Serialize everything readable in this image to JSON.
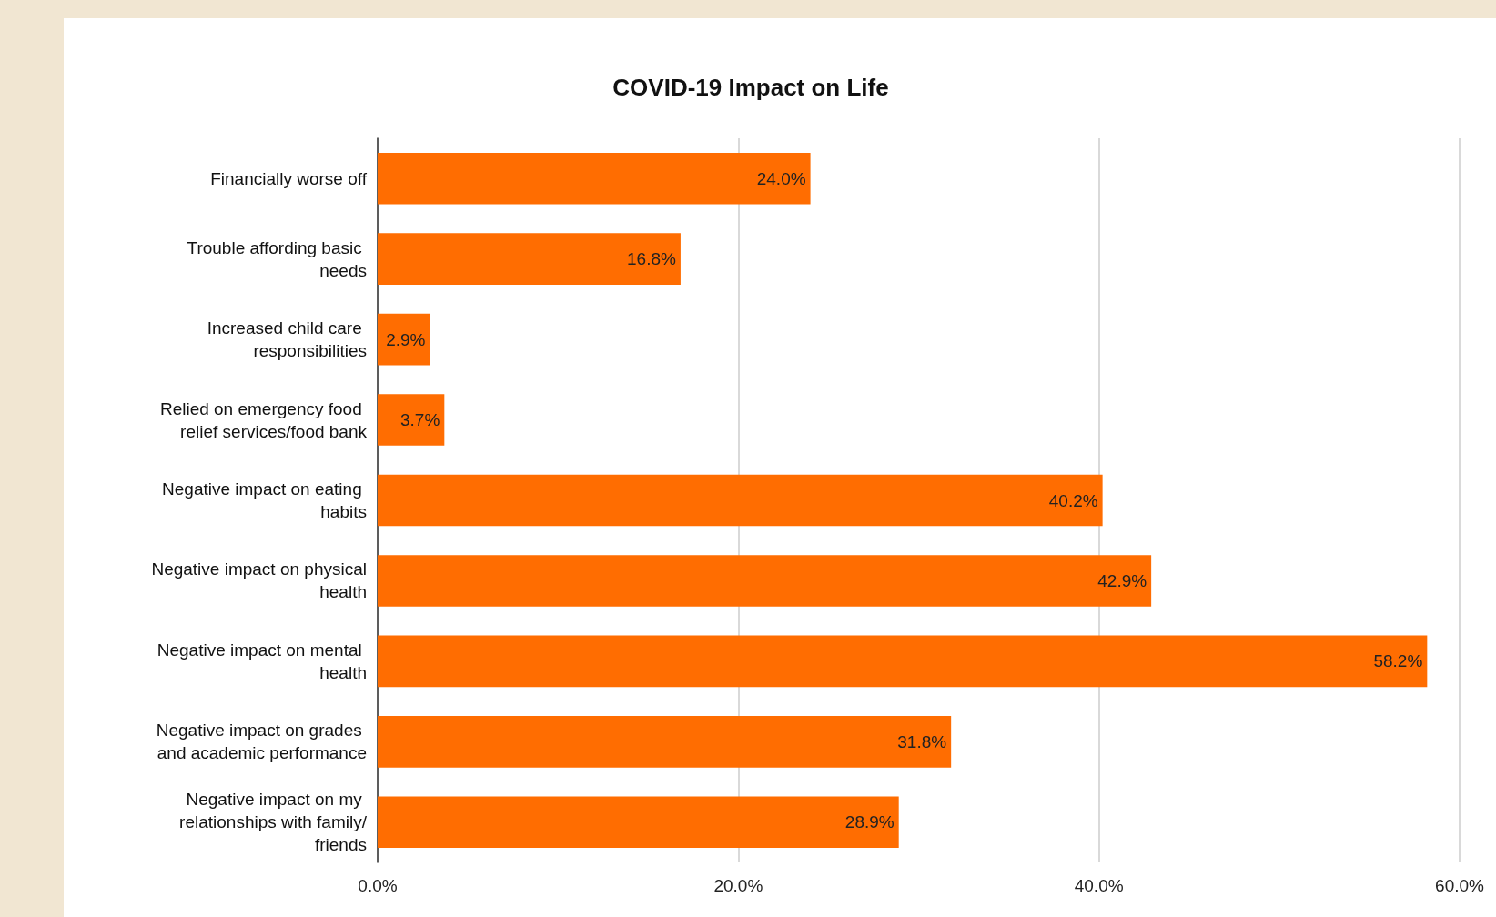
{
  "chart_data": {
    "type": "bar",
    "orientation": "horizontal",
    "title": "COVID-19 Impact on Life",
    "categories": [
      "Financially worse off",
      "Trouble affording basic needs",
      "Increased child care responsibilities",
      "Relied on emergency food relief services/food bank",
      "Negative impact on eating habits",
      "Negative impact on physical health",
      "Negative impact on mental health",
      "Negative impact on grades and academic performance",
      "Negative impact on my relationships with family/friends"
    ],
    "values": [
      24.0,
      16.8,
      2.9,
      3.7,
      40.2,
      42.9,
      58.2,
      31.8,
      28.9
    ],
    "value_labels": [
      "24.0%",
      "16.8%",
      "2.9%",
      "3.7%",
      "40.2%",
      "42.9%",
      "58.2%",
      "31.8%",
      "28.9%"
    ],
    "color": "#ff6d01",
    "xlim": [
      0,
      60
    ],
    "xticks": [
      {
        "value": 0,
        "label": "0.0%"
      },
      {
        "value": 20,
        "label": "20.0%"
      },
      {
        "value": 40,
        "label": "40.0%"
      },
      {
        "value": 60,
        "label": "60.0%"
      }
    ],
    "grid": "x"
  }
}
